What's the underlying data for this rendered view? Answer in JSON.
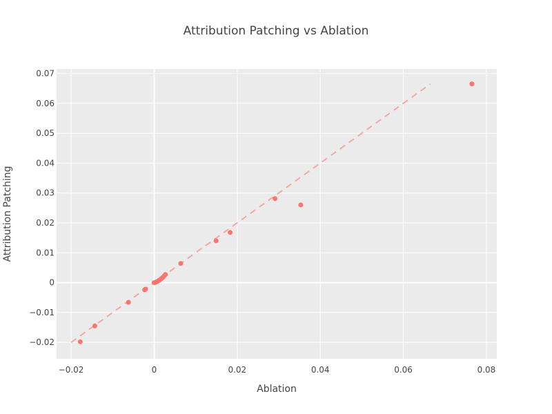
{
  "chart_data": {
    "type": "scatter",
    "title": "Attribution Patching vs Ablation",
    "xlabel": "Ablation",
    "ylabel": "Attribution Patching",
    "xlim": [
      -0.0235,
      0.0825
    ],
    "ylim": [
      -0.0255,
      0.0715
    ],
    "x_ticks": [
      -0.02,
      0,
      0.02,
      0.04,
      0.06,
      0.08
    ],
    "x_tick_labels": [
      "−0.02",
      "0",
      "0.02",
      "0.04",
      "0.06",
      "0.08"
    ],
    "y_ticks": [
      -0.02,
      -0.01,
      0,
      0.01,
      0.02,
      0.03,
      0.04,
      0.05,
      0.06,
      0.07
    ],
    "y_tick_labels": [
      "−0.02",
      "−0.01",
      "0",
      "0.01",
      "0.02",
      "0.03",
      "0.04",
      "0.05",
      "0.06",
      "0.07"
    ],
    "grid": true,
    "background_color": "#ebebeb",
    "marker_color": "#f8766d",
    "reference_line": {
      "style": "dashed",
      "color": "#f4a89f",
      "x": [
        -0.02,
        0.0665
      ],
      "y": [
        -0.02,
        0.0665
      ]
    },
    "points": [
      {
        "x": -0.0178,
        "y": -0.0198
      },
      {
        "x": -0.0143,
        "y": -0.0145
      },
      {
        "x": -0.0062,
        "y": -0.0066
      },
      {
        "x": -0.0023,
        "y": -0.0024
      },
      {
        "x": -0.0021,
        "y": -0.0022
      },
      {
        "x": 0.0,
        "y": 0.0
      },
      {
        "x": 0.0003,
        "y": 0.0001
      },
      {
        "x": 0.0006,
        "y": 0.0003
      },
      {
        "x": 0.0009,
        "y": 0.0005
      },
      {
        "x": 0.0012,
        "y": 0.0008
      },
      {
        "x": 0.0015,
        "y": 0.0011
      },
      {
        "x": 0.0018,
        "y": 0.0014
      },
      {
        "x": 0.0021,
        "y": 0.0018
      },
      {
        "x": 0.0024,
        "y": 0.0022
      },
      {
        "x": 0.0027,
        "y": 0.0027
      },
      {
        "x": 0.0064,
        "y": 0.0064
      },
      {
        "x": 0.0149,
        "y": 0.014
      },
      {
        "x": 0.0183,
        "y": 0.0168
      },
      {
        "x": 0.0291,
        "y": 0.0281
      },
      {
        "x": 0.0353,
        "y": 0.026
      },
      {
        "x": 0.0765,
        "y": 0.0665
      }
    ]
  }
}
